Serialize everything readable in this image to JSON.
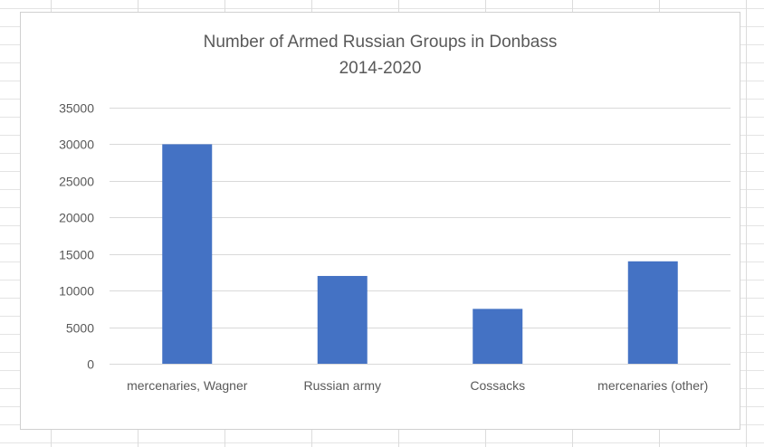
{
  "chart_data": {
    "type": "bar",
    "title": "Number of Armed Russian Groups in Donbass",
    "subtitle": "2014-2020",
    "categories": [
      "mercenaries, Wagner",
      "Russian army",
      "Cossacks",
      "mercenaries (other)"
    ],
    "values": [
      30000,
      12000,
      7500,
      14000
    ],
    "xlabel": "",
    "ylabel": "",
    "ylim": [
      0,
      35000
    ],
    "yticks": [
      0,
      5000,
      10000,
      15000,
      20000,
      25000,
      30000,
      35000
    ],
    "grid": true,
    "legend": "none",
    "bar_color": "#4472C4",
    "grid_color": "#D9D9D9",
    "text_color": "#595959"
  }
}
